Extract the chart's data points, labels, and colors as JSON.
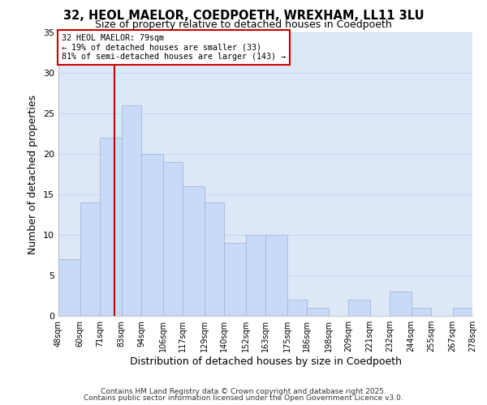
{
  "title1": "32, HEOL MAELOR, COEDPOETH, WREXHAM, LL11 3LU",
  "title2": "Size of property relative to detached houses in Coedpoeth",
  "xlabel": "Distribution of detached houses by size in Coedpoeth",
  "ylabel": "Number of detached properties",
  "bar_edges": [
    48,
    60,
    71,
    83,
    94,
    106,
    117,
    129,
    140,
    152,
    163,
    175,
    186,
    198,
    209,
    221,
    232,
    244,
    255,
    267,
    278
  ],
  "bar_heights": [
    7,
    14,
    22,
    26,
    20,
    19,
    16,
    14,
    9,
    10,
    10,
    2,
    1,
    0,
    2,
    0,
    3,
    1,
    0,
    1
  ],
  "bar_color": "#c9daf8",
  "bar_edge_color": "#a4b8d4",
  "grid_color": "#c8d8f0",
  "vline_x": 79,
  "vline_color": "#cc0000",
  "annotation_title": "32 HEOL MAELOR: 79sqm",
  "annotation_line1": "← 19% of detached houses are smaller (33)",
  "annotation_line2": "81% of semi-detached houses are larger (143) →",
  "annotation_box_color": "#cc0000",
  "ylim": [
    0,
    35
  ],
  "yticks": [
    0,
    5,
    10,
    15,
    20,
    25,
    30,
    35
  ],
  "tick_labels": [
    "48sqm",
    "60sqm",
    "71sqm",
    "83sqm",
    "94sqm",
    "106sqm",
    "117sqm",
    "129sqm",
    "140sqm",
    "152sqm",
    "163sqm",
    "175sqm",
    "186sqm",
    "198sqm",
    "209sqm",
    "221sqm",
    "232sqm",
    "244sqm",
    "255sqm",
    "267sqm",
    "278sqm"
  ],
  "footnote1": "Contains HM Land Registry data © Crown copyright and database right 2025.",
  "footnote2": "Contains public sector information licensed under the Open Government Licence v3.0.",
  "bg_color": "#ffffff",
  "plot_bg_color": "#dce8f8"
}
